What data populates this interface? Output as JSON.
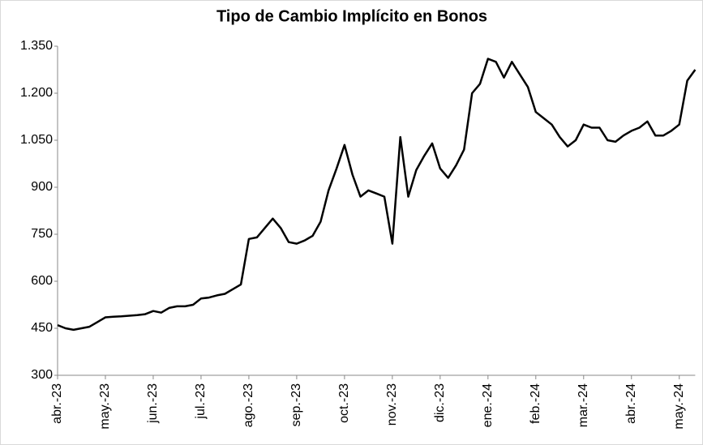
{
  "chart_data": {
    "type": "line",
    "title": "Tipo de Cambio Implícito en Bonos",
    "color": "#000000",
    "categories": [
      "abr.-23",
      null,
      null,
      null,
      null,
      null,
      "may.-23",
      null,
      null,
      null,
      null,
      null,
      "jun.-23",
      null,
      null,
      null,
      null,
      null,
      "jul.-23",
      null,
      null,
      null,
      null,
      null,
      "ago.-23",
      null,
      null,
      null,
      null,
      null,
      "sep.-23",
      null,
      null,
      null,
      null,
      null,
      "oct.-23",
      null,
      null,
      null,
      null,
      null,
      "nov.-23",
      null,
      null,
      null,
      null,
      null,
      "dic.-23",
      null,
      null,
      null,
      null,
      null,
      "ene.-24",
      null,
      null,
      null,
      null,
      null,
      "feb.-24",
      null,
      null,
      null,
      null,
      null,
      "mar.-24",
      null,
      null,
      null,
      null,
      null,
      "abr.-24",
      null,
      null,
      null,
      null,
      null,
      "may.-24",
      null,
      null
    ],
    "values": [
      460,
      450,
      445,
      450,
      455,
      470,
      485,
      487,
      488,
      490,
      492,
      495,
      505,
      500,
      515,
      520,
      520,
      525,
      545,
      548,
      555,
      560,
      575,
      590,
      735,
      740,
      770,
      800,
      770,
      725,
      720,
      730,
      745,
      790,
      890,
      960,
      1035,
      940,
      870,
      890,
      880,
      870,
      720,
      1060,
      870,
      955,
      1000,
      1040,
      960,
      930,
      970,
      1020,
      1200,
      1230,
      1310,
      1300,
      1250,
      1300,
      1260,
      1220,
      1140,
      1120,
      1100,
      1060,
      1030,
      1050,
      1100,
      1090,
      1090,
      1050,
      1045,
      1065,
      1080,
      1090,
      1110,
      1065,
      1065,
      1080,
      1100,
      1240,
      1275
    ],
    "ylim": [
      300,
      1350
    ],
    "yticks": [
      300,
      450,
      600,
      750,
      900,
      {
        "value": 1050,
        "label": "1.050"
      },
      {
        "value": 1200,
        "label": "1.200"
      },
      {
        "value": 1350,
        "label": "1.350"
      }
    ]
  }
}
